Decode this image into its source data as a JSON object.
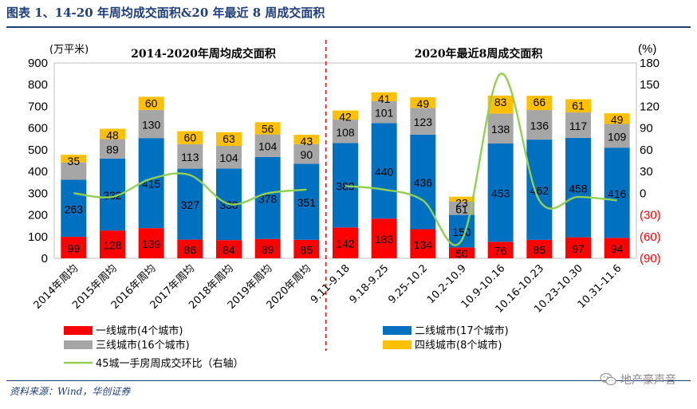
{
  "header": {
    "title": "图表 1、14-20 年周均成交面积&20 年最近 8 周成交面积"
  },
  "footer": {
    "source": "资料来源：Wind，华创证券",
    "watermark": "地产豪声音"
  },
  "colors": {
    "tier1": "#ff0000",
    "tier2": "#0070c0",
    "tier3": "#a6a6a6",
    "tier4": "#ffc000",
    "line": "#92d050",
    "divider": "#ff0000",
    "negative": "#ff0000",
    "title": "#1f3f7a"
  },
  "chart_data": {
    "type": "bar",
    "stacked": true,
    "left_axis_unit": "(万平米)",
    "right_axis_unit": "(%)",
    "left_ticks": [
      "900",
      "800",
      "700",
      "600",
      "500",
      "400",
      "300",
      "200",
      "100",
      "0"
    ],
    "right_ticks": [
      "180",
      "150",
      "120",
      "90",
      "60",
      "30",
      "0",
      "(30)",
      "(60)",
      "(90)"
    ],
    "ylim": [
      0,
      900
    ],
    "y2lim": [
      -90,
      180
    ],
    "section_left_title": "2014-2020年周均成交面积",
    "section_right_title": "2020年最近8周成交面积",
    "categories": [
      "2014年周均",
      "2015年周均",
      "2016年周均",
      "2017年周均",
      "2018年周均",
      "2019年周均",
      "2020年周均",
      "9.11-9.18",
      "9.18-9.25",
      "9.25-10.2",
      "10.2-10.9",
      "10.9-10.16",
      "10.16-10.23",
      "10.23-10.30",
      "10.31-11.6"
    ],
    "series": [
      {
        "name": "一线城市(4个城市)",
        "values": [
          99,
          128,
          139,
          86,
          84,
          89,
          85,
          142,
          183,
          134,
          50,
          76,
          85,
          97,
          94
        ]
      },
      {
        "name": "二线城市(17个城市)",
        "values": [
          263,
          332,
          415,
          327,
          330,
          378,
          351,
          389,
          440,
          436,
          150,
          453,
          462,
          458,
          416
        ]
      },
      {
        "name": "三线城市(16个城市)",
        "values": [
          null,
          89,
          130,
          113,
          104,
          104,
          90,
          108,
          101,
          123,
          61,
          138,
          136,
          117,
          109
        ]
      },
      {
        "name": "四线城市(8个城市)",
        "values": [
          35,
          48,
          60,
          60,
          63,
          56,
          43,
          42,
          41,
          49,
          23,
          83,
          66,
          61,
          49
        ]
      }
    ],
    "tier3_bar_heights": [
      80,
      89,
      130,
      113,
      104,
      104,
      90,
      108,
      101,
      123,
      61,
      138,
      136,
      117,
      109
    ],
    "line_series": {
      "name": "45城一手房周成交环比（右轴）",
      "left_part": [
        0,
        -5,
        20,
        25,
        -15,
        0,
        5
      ],
      "right_part": [
        10,
        5,
        -10,
        -65,
        165,
        -10,
        -5,
        -10
      ]
    }
  }
}
